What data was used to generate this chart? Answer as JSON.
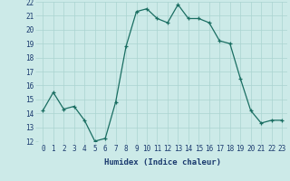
{
  "x": [
    0,
    1,
    2,
    3,
    4,
    5,
    6,
    7,
    8,
    9,
    10,
    11,
    12,
    13,
    14,
    15,
    16,
    17,
    18,
    19,
    20,
    21,
    22,
    23
  ],
  "y": [
    14.2,
    15.5,
    14.3,
    14.5,
    13.5,
    12.0,
    12.2,
    14.8,
    18.8,
    21.3,
    21.5,
    20.8,
    20.5,
    21.8,
    20.8,
    20.8,
    20.5,
    19.2,
    19.0,
    16.5,
    14.2,
    13.3,
    13.5,
    13.5
  ],
  "xlabel": "Humidex (Indice chaleur)",
  "ylim": [
    12,
    22
  ],
  "xlim": [
    -0.5,
    23.5
  ],
  "yticks": [
    12,
    13,
    14,
    15,
    16,
    17,
    18,
    19,
    20,
    21,
    22
  ],
  "xticks": [
    0,
    1,
    2,
    3,
    4,
    5,
    6,
    7,
    8,
    9,
    10,
    11,
    12,
    13,
    14,
    15,
    16,
    17,
    18,
    19,
    20,
    21,
    22,
    23
  ],
  "line_color": "#1a6e62",
  "marker_color": "#1a6e62",
  "bg_color": "#cceae8",
  "grid_color": "#aad4d0",
  "label_color": "#1a3a6e",
  "xlabel_color": "#1a3a6e",
  "tick_fontsize": 5.5,
  "xlabel_fontsize": 6.5
}
